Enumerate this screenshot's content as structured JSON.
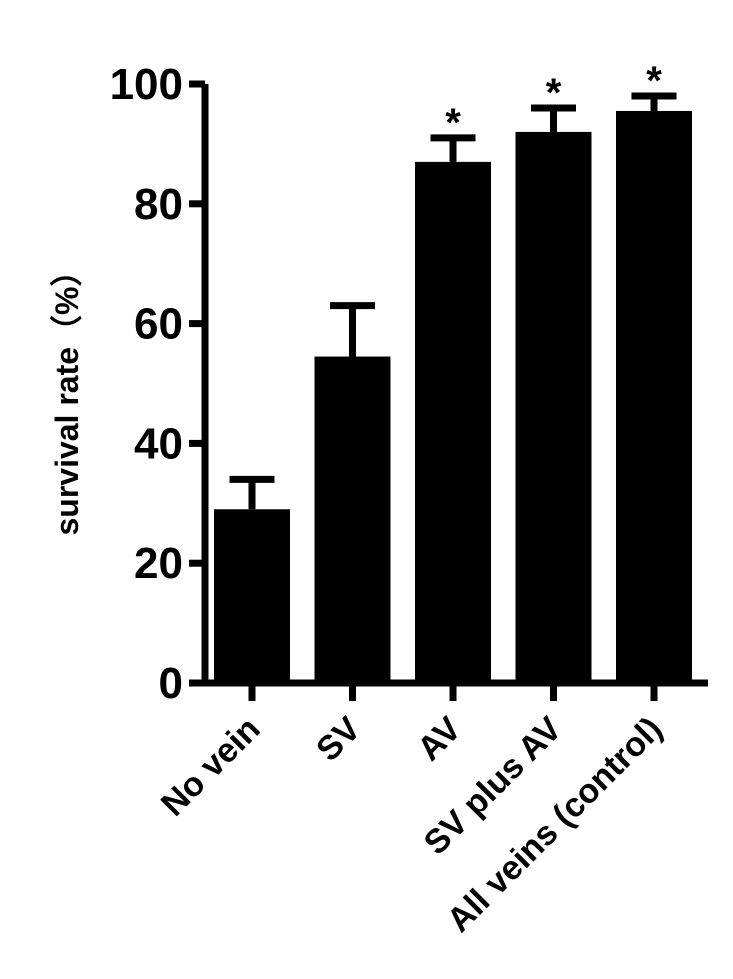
{
  "chart_data": {
    "type": "bar",
    "categories": [
      "No vein",
      "SV",
      "AV",
      "SV plus AV",
      "All veins (control)"
    ],
    "values": [
      29,
      54.5,
      87,
      92,
      95.5
    ],
    "errors": [
      5,
      8.5,
      4,
      4,
      2.5
    ],
    "significance": [
      "",
      "",
      "*",
      "*",
      "*"
    ],
    "ylabel": "survival rate（%）",
    "xlabel": "",
    "ylim": [
      0,
      100
    ],
    "yticks": [
      0,
      20,
      40,
      60,
      80,
      100
    ],
    "bar_color": "#000000",
    "grid": false,
    "legend": "none"
  }
}
